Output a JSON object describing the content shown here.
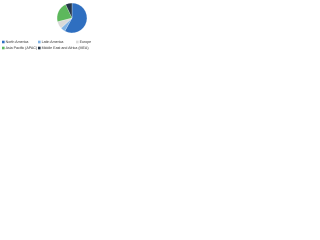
{
  "chart_data": {
    "type": "pie",
    "categories": [
      "North America",
      "Latin America",
      "Europe",
      "Asia Pacific (APAC)",
      "Middle East and Africa (MEA)"
    ],
    "values": [
      58,
      5,
      8,
      22,
      7
    ],
    "colors": [
      "#2f6fc0",
      "#7fb2e5",
      "#d9d9d9",
      "#5db85c",
      "#243447"
    ],
    "legend": "bottom"
  }
}
